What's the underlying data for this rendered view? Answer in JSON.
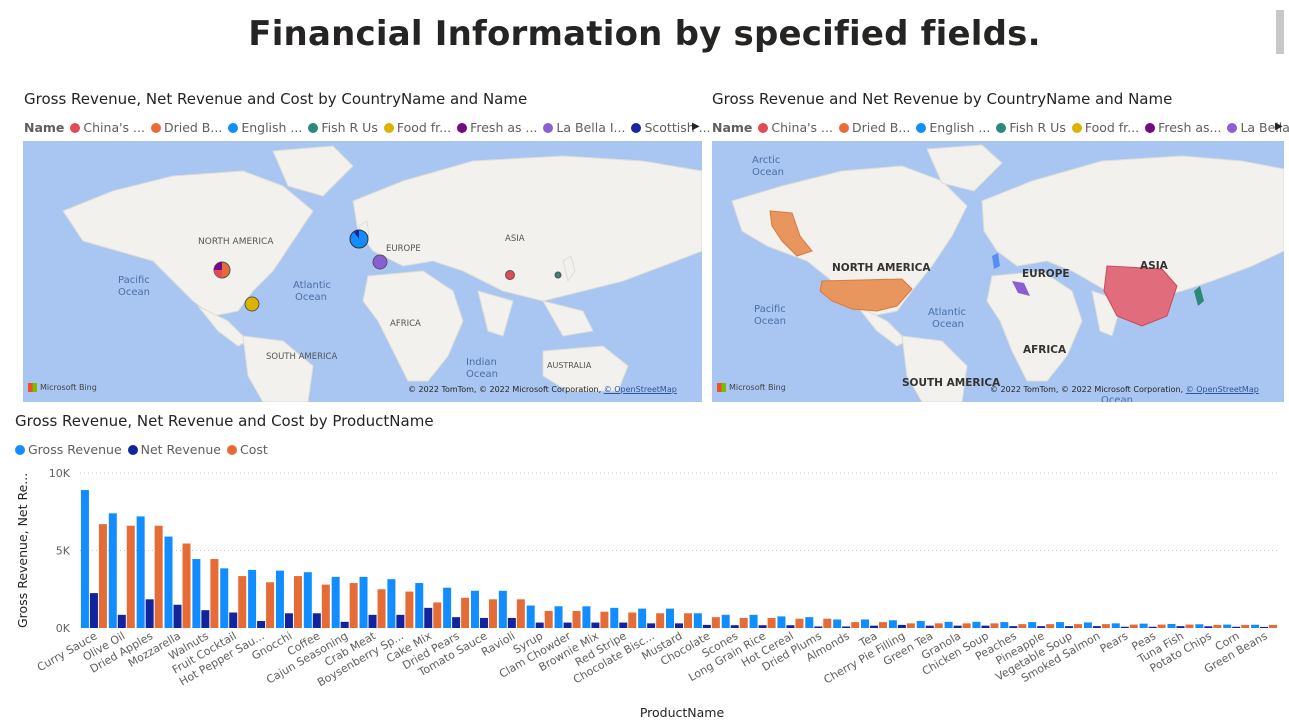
{
  "page": {
    "title": "Financial Information by specified fields."
  },
  "map1": {
    "title": "Gross Revenue, Net Revenue and Cost by CountryName and Name",
    "legend_title": "Name",
    "legend": [
      {
        "label": "China's ...",
        "color": "#e04b5a"
      },
      {
        "label": "Dried B...",
        "color": "#ea6b3a"
      },
      {
        "label": "English ...",
        "color": "#118dff"
      },
      {
        "label": "Fish R Us",
        "color": "#2a8a7a"
      },
      {
        "label": "Food fr...",
        "color": "#d9b300"
      },
      {
        "label": "Fresh as ...",
        "color": "#750985"
      },
      {
        "label": "La Bella I...",
        "color": "#8b5fd4"
      },
      {
        "label": "Scottish ...",
        "color": "#1a23a0"
      }
    ],
    "labels": {
      "north_america": "North America",
      "europe": "Europe",
      "asia": "Asia",
      "pacific": "Pacific\nOcean",
      "atlantic": "Atlantic\nOcean",
      "africa": "Africa",
      "south_america": "South America",
      "indian": "Indian\nOcean",
      "australia": "Australia"
    },
    "bing": "Microsoft Bing",
    "copyright": "© 2022 TomTom, © 2022 Microsoft Corporation,",
    "copyright_link": "© OpenStreetMap"
  },
  "map2": {
    "title": "Gross Revenue and Net Revenue by CountryName and Name",
    "legend_title": "Name",
    "legend": [
      {
        "label": "China's ...",
        "color": "#e04b5a"
      },
      {
        "label": "Dried B...",
        "color": "#ea6b3a"
      },
      {
        "label": "English ...",
        "color": "#118dff"
      },
      {
        "label": "Fish R Us",
        "color": "#2a8a7a"
      },
      {
        "label": "Food fr...",
        "color": "#d9b300"
      },
      {
        "label": "Fresh as...",
        "color": "#750985"
      },
      {
        "label": "La Bella ...",
        "color": "#8b5fd4"
      }
    ],
    "labels": {
      "arctic": "Arctic\nOcean",
      "north_america": "NORTH AMERICA",
      "europe": "EUROPE",
      "asia": "ASIA",
      "pacific": "Pacific\nOcean",
      "atlantic": "Atlantic\nOcean",
      "africa": "AFRICA",
      "south_america": "SOUTH AMERICA",
      "ocean": "Ocean"
    },
    "bing": "Microsoft Bing",
    "copyright": "© 2022 TomTom, © 2022 Microsoft Corporation,",
    "copyright_link": "© OpenStreetMap"
  },
  "chart_data": {
    "type": "bar",
    "title": "Gross Revenue, Net Revenue and Cost by ProductName",
    "xlabel": "ProductName",
    "ylabel": "Gross Revenue, Net Re...",
    "ylim": [
      0,
      10000
    ],
    "yticks": [
      {
        "v": 0,
        "label": "0K"
      },
      {
        "v": 5000,
        "label": "5K"
      },
      {
        "v": 10000,
        "label": "10K"
      }
    ],
    "grid": true,
    "legend_position": "top-left",
    "categories": [
      "Curry Sauce",
      "Olive Oil",
      "Dried Apples",
      "Mozzarella",
      "Walnuts",
      "Fruit Cocktail",
      "Hot Pepper Sau...",
      "Gnocchi",
      "Coffee",
      "Cajun Seasoning",
      "Crab Meat",
      "Boysenberry Sp...",
      "Cake Mix",
      "Dried Pears",
      "Tomato Sauce",
      "Ravioli",
      "Syrup",
      "Clam Chowder",
      "Brownie Mix",
      "Red Stripe",
      "Chocolate Bisc...",
      "Mustard",
      "Chocolate",
      "Scones",
      "Long Grain Rice",
      "Hot Cereal",
      "Dried Plums",
      "Almonds",
      "Tea",
      "Cherry Pie Filling",
      "Green Tea",
      "Granola",
      "Chicken Soup",
      "Peaches",
      "Pineapple",
      "Vegetable Soup",
      "Smoked Salmon",
      "Pears",
      "Peas",
      "Tuna Fish",
      "Potato Chips",
      "Corn",
      "Green Beans"
    ],
    "series": [
      {
        "name": "Gross Revenue",
        "color": "#118dff",
        "values": [
          8900,
          7400,
          7200,
          5900,
          4450,
          3850,
          3750,
          3700,
          3600,
          3300,
          3300,
          3150,
          2900,
          2600,
          2400,
          2400,
          1450,
          1400,
          1400,
          1300,
          1250,
          1250,
          950,
          850,
          850,
          750,
          700,
          550,
          550,
          500,
          450,
          400,
          400,
          380,
          380,
          380,
          360,
          300,
          280,
          260,
          240,
          220,
          210
        ]
      },
      {
        "name": "Net Revenue",
        "color": "#12239e",
        "values": [
          2250,
          850,
          1850,
          1500,
          1150,
          1000,
          450,
          950,
          950,
          400,
          850,
          850,
          1300,
          700,
          650,
          650,
          350,
          350,
          350,
          350,
          300,
          300,
          200,
          180,
          180,
          180,
          100,
          100,
          150,
          200,
          150,
          150,
          150,
          120,
          120,
          120,
          120,
          80,
          80,
          120,
          110,
          80,
          70
        ]
      },
      {
        "name": "Cost",
        "color": "#e66c37",
        "values": [
          6700,
          6600,
          6600,
          5450,
          4450,
          3350,
          2950,
          3350,
          2800,
          2900,
          2500,
          2350,
          1650,
          1950,
          1850,
          1850,
          1100,
          1100,
          1050,
          1000,
          950,
          950,
          700,
          650,
          650,
          600,
          600,
          380,
          380,
          300,
          300,
          300,
          300,
          250,
          250,
          250,
          250,
          220,
          220,
          220,
          200,
          200,
          200
        ]
      }
    ]
  }
}
